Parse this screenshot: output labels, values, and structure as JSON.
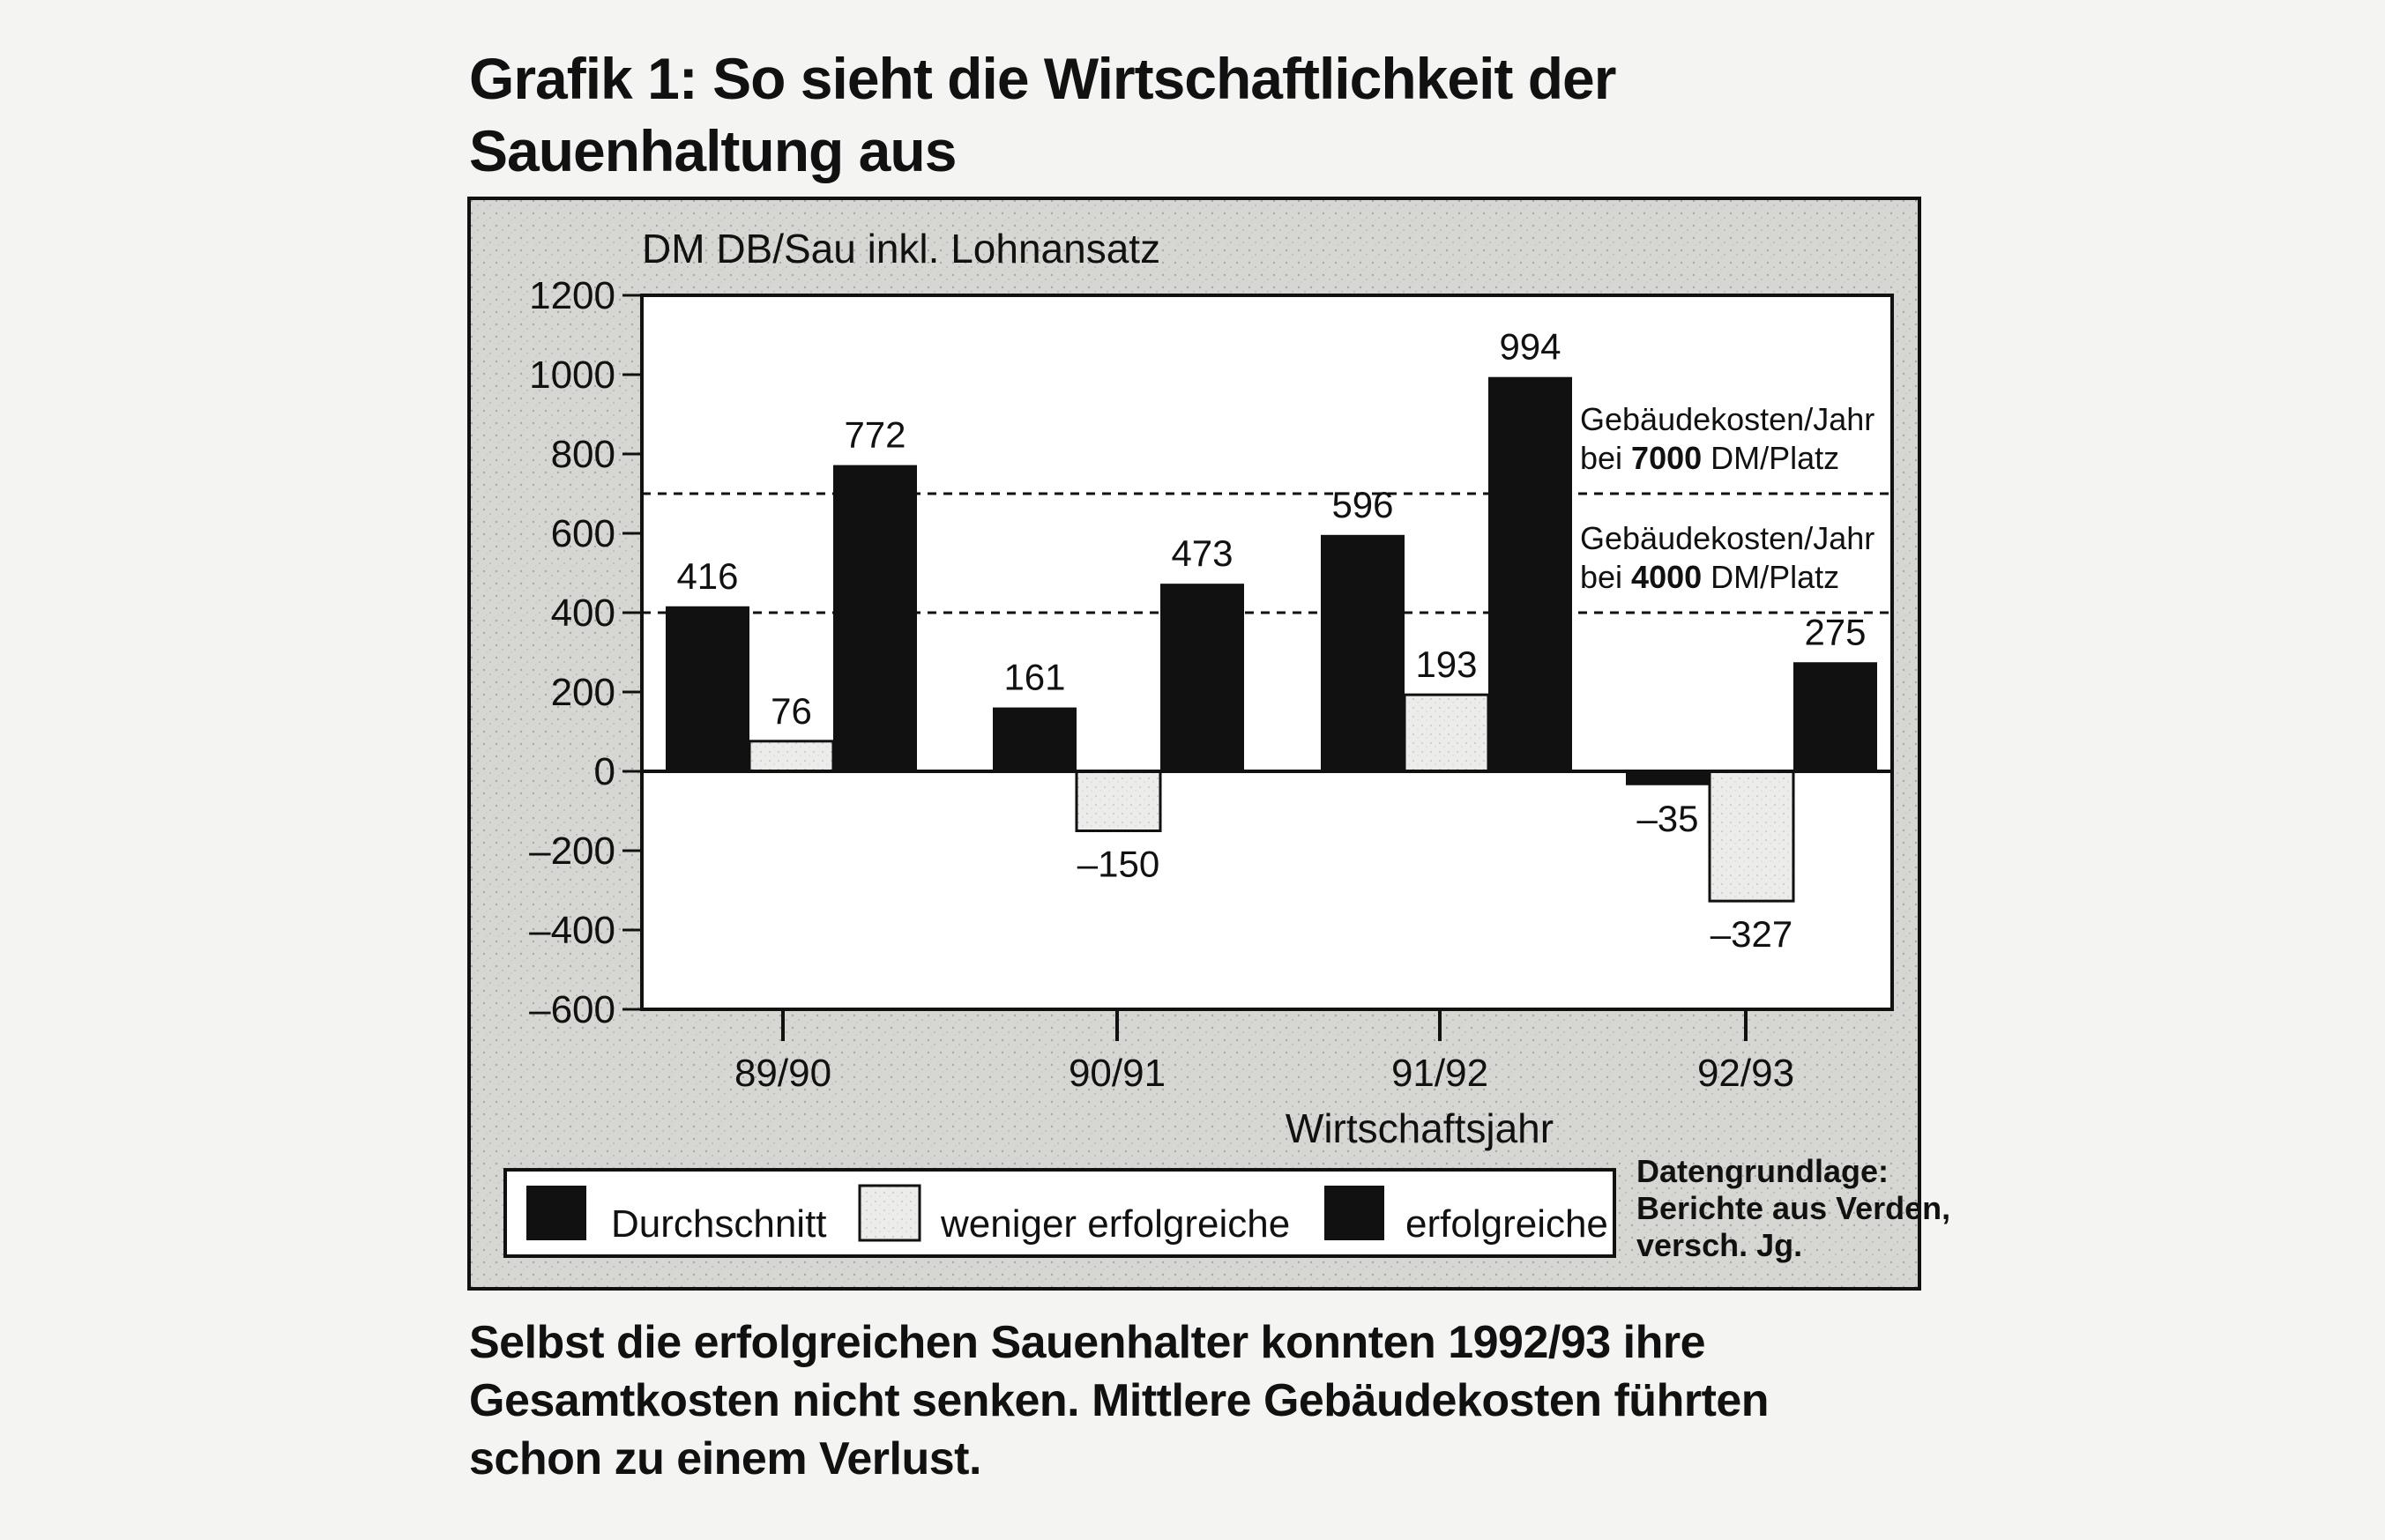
{
  "title": "Grafik 1: So sieht die Wirtschaftlichkeit der Sauenhaltung aus",
  "caption": "Selbst die erfolgreichen Sauenhalter konnten 1992/93 ihre Gesamtkosten nicht senken. Mittlere Gebäudekosten führten schon zu einem Verlust.",
  "colors": {
    "dark_bar": "#111111",
    "light_bar": "#e2e2de",
    "frame_bg": "#dcdcd8",
    "plot_bg": "#ffffff"
  },
  "chart_data": {
    "type": "bar",
    "ylabel": "DM DB/Sau inkl. Lohnansatz",
    "xlabel": "Wirtschaftsjahr",
    "ylim": [
      -600,
      1200
    ],
    "yticks": [
      1200,
      1000,
      800,
      600,
      400,
      200,
      0,
      -200,
      -400,
      -600
    ],
    "ytick_labels": [
      "1200",
      "1000",
      "800",
      "600",
      "400",
      "200",
      "0",
      "–200",
      "–400",
      "–600"
    ],
    "categories": [
      "89/90",
      "90/91",
      "91/92",
      "92/93"
    ],
    "series": [
      {
        "name": "Durchschnitt",
        "style": "dark",
        "values": [
          416,
          161,
          596,
          -35
        ],
        "labels": [
          "416",
          "161",
          "596",
          "–35"
        ]
      },
      {
        "name": "weniger erfolgreiche",
        "style": "light",
        "values": [
          76,
          -150,
          193,
          -327
        ],
        "labels": [
          "76",
          "–150",
          "193",
          "–327"
        ]
      },
      {
        "name": "erfolgreiche",
        "style": "dark",
        "values": [
          772,
          473,
          994,
          275
        ],
        "labels": [
          "772",
          "473",
          "994",
          "275"
        ]
      }
    ],
    "reference_lines": [
      {
        "value": 700,
        "line1": "Gebäudekosten/Jahr",
        "line2_prefix": "bei ",
        "line2_bold": "7000",
        "line2_suffix": " DM/Platz"
      },
      {
        "value": 400,
        "line1": "Gebäudekosten/Jahr",
        "line2_prefix": "bei ",
        "line2_bold": "4000",
        "line2_suffix": " DM/Platz"
      }
    ],
    "grid": false,
    "legend_position": "bottom",
    "source": [
      "Datengrundlage:",
      "Berichte aus Verden,",
      "versch. Jg."
    ]
  }
}
